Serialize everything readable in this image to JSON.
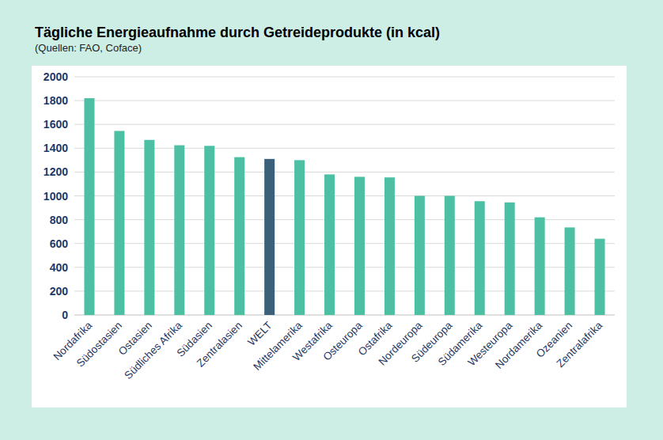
{
  "chart_data": {
    "type": "bar",
    "title": "Tägliche Energieaufnahme durch Getreideprodukte (in kcal)",
    "subtitle": "(Quellen: FAO, Coface)",
    "categories": [
      "Nordafrika",
      "Südostasien",
      "Ostasien",
      "Südliches Afrika",
      "Südasien",
      "Zentralasien",
      "WELT",
      "Mittelamerika",
      "Westafrika",
      "Osteuropa",
      "Ostafrika",
      "Nordeuropa",
      "Südeuropa",
      "Südamerika",
      "Westeuropa",
      "Nordamerika",
      "Ozeanien",
      "Zentralafrika"
    ],
    "values": [
      1820,
      1545,
      1470,
      1425,
      1420,
      1325,
      1310,
      1300,
      1180,
      1160,
      1155,
      1000,
      1000,
      955,
      945,
      820,
      735,
      640
    ],
    "colors": [
      "#4dbfa3",
      "#4dbfa3",
      "#4dbfa3",
      "#4dbfa3",
      "#4dbfa3",
      "#4dbfa3",
      "#3b6079",
      "#4dbfa3",
      "#4dbfa3",
      "#4dbfa3",
      "#4dbfa3",
      "#4dbfa3",
      "#4dbfa3",
      "#4dbfa3",
      "#4dbfa3",
      "#4dbfa3",
      "#4dbfa3",
      "#4dbfa3"
    ],
    "ylim": [
      0,
      2000
    ],
    "yticks": [
      0,
      200,
      400,
      600,
      800,
      1000,
      1200,
      1400,
      1600,
      1800,
      2000
    ],
    "grid": true
  }
}
